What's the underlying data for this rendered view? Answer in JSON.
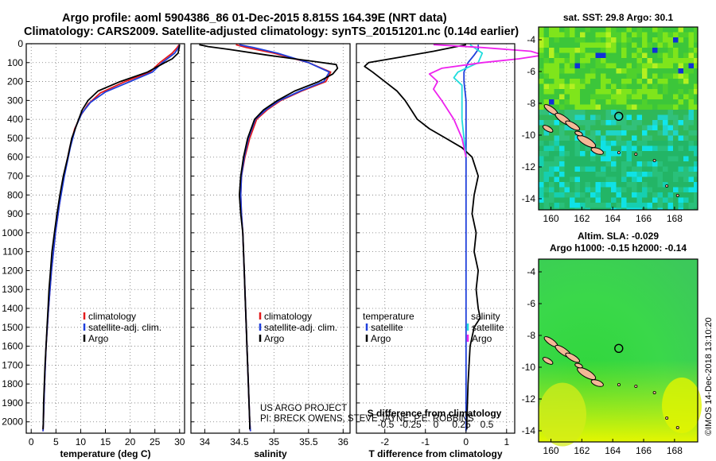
{
  "header": {
    "title_line1": "Argo profile: aoml 5904386_86 01-Dec-2015 8.815S 164.39E (NRT data)",
    "title_line2": "Climatology: CARS2009. Satellite-adjusted climatology: synTS_20151201.nc (0.14d earlier)"
  },
  "credit": {
    "line1": "US ARGO PROJECT",
    "line2": "PI: BRECK OWENS, STEVE JAYNE, P.E. ROBBINS"
  },
  "watermark": "©IMOS 14-Dec-2018 13:10:20",
  "colors": {
    "climatology": "#e31a1c",
    "satellite": "#1f3fdc",
    "argo": "#000000",
    "sat_salinity": "#22dddd",
    "argo_salinity": "#ee22ee",
    "land": "#f4b896"
  },
  "chart_data": [
    {
      "type": "line",
      "panel": "temperature",
      "xlabel": "temperature (deg C)",
      "ylabel": "",
      "xlim": [
        -1,
        31
      ],
      "ylim": [
        2060,
        0
      ],
      "x_ticks": [
        0,
        5,
        10,
        15,
        20,
        25,
        30
      ],
      "y_ticks": [
        0,
        100,
        200,
        300,
        400,
        500,
        600,
        700,
        800,
        900,
        1000,
        1100,
        1200,
        1300,
        1400,
        1500,
        1600,
        1700,
        1800,
        1900,
        2000
      ],
      "grid": true,
      "legend": [
        "climatology",
        "satellite-adj. clim.",
        "Argo"
      ],
      "series": [
        {
          "name": "climatology",
          "color": "#e31a1c",
          "points": [
            [
              29.9,
              5
            ],
            [
              29.5,
              20
            ],
            [
              28.5,
              50
            ],
            [
              26,
              100
            ],
            [
              24,
              150
            ],
            [
              19,
              200
            ],
            [
              14,
              260
            ],
            [
              11.5,
              320
            ],
            [
              10,
              380
            ],
            [
              8.8,
              450
            ],
            [
              7.8,
              550
            ],
            [
              6.6,
              700
            ],
            [
              5.7,
              850
            ],
            [
              4.9,
              1000
            ],
            [
              4.1,
              1200
            ],
            [
              3.5,
              1400
            ],
            [
              3.0,
              1600
            ],
            [
              2.7,
              1800
            ],
            [
              2.45,
              2000
            ],
            [
              2.4,
              2050
            ]
          ]
        },
        {
          "name": "satellite-adj. clim.",
          "color": "#1f3fdc",
          "points": [
            [
              30.0,
              5
            ],
            [
              29.8,
              20
            ],
            [
              29,
              50
            ],
            [
              26.5,
              100
            ],
            [
              24.5,
              150
            ],
            [
              20,
              200
            ],
            [
              15,
              255
            ],
            [
              12,
              310
            ],
            [
              10.2,
              370
            ],
            [
              9,
              440
            ],
            [
              7.9,
              550
            ],
            [
              6.7,
              700
            ],
            [
              5.7,
              850
            ],
            [
              4.9,
              1000
            ],
            [
              4.1,
              1200
            ],
            [
              3.5,
              1400
            ],
            [
              3.0,
              1600
            ],
            [
              2.7,
              1800
            ],
            [
              2.45,
              2000
            ],
            [
              2.4,
              2050
            ]
          ]
        },
        {
          "name": "Argo",
          "color": "#000000",
          "points": [
            [
              30.0,
              5
            ],
            [
              29.9,
              20
            ],
            [
              29.7,
              50
            ],
            [
              28.5,
              80
            ],
            [
              27,
              100
            ],
            [
              23.5,
              150
            ],
            [
              18,
              200
            ],
            [
              13.5,
              250
            ],
            [
              11.5,
              300
            ],
            [
              10.3,
              350
            ],
            [
              9.6,
              400
            ],
            [
              8.9,
              450
            ],
            [
              8.2,
              500
            ],
            [
              7.4,
              600
            ],
            [
              6.5,
              700
            ],
            [
              5.8,
              800
            ],
            [
              5.2,
              900
            ],
            [
              4.7,
              1000
            ],
            [
              4.2,
              1100
            ],
            [
              3.9,
              1200
            ],
            [
              3.6,
              1300
            ],
            [
              3.4,
              1400
            ],
            [
              3.2,
              1500
            ],
            [
              3.0,
              1600
            ],
            [
              2.8,
              1700
            ],
            [
              2.65,
              1800
            ],
            [
              2.5,
              1900
            ],
            [
              2.45,
              2000
            ],
            [
              2.4,
              2040
            ]
          ]
        }
      ]
    },
    {
      "type": "line",
      "panel": "salinity",
      "xlabel": "salinity",
      "xlim": [
        33.8,
        36.1
      ],
      "ylim": [
        2060,
        0
      ],
      "x_ticks": [
        34,
        34.5,
        35,
        35.5,
        36
      ],
      "grid": true,
      "legend": [
        "climatology",
        "satellite-adj. clim.",
        "Argo"
      ],
      "series": [
        {
          "name": "climatology",
          "color": "#e31a1c",
          "points": [
            [
              34.45,
              5
            ],
            [
              34.6,
              20
            ],
            [
              35.0,
              50
            ],
            [
              35.5,
              100
            ],
            [
              35.82,
              150
            ],
            [
              35.75,
              200
            ],
            [
              35.4,
              250
            ],
            [
              35.1,
              300
            ],
            [
              34.9,
              350
            ],
            [
              34.75,
              400
            ],
            [
              34.65,
              500
            ],
            [
              34.58,
              600
            ],
            [
              34.53,
              700
            ],
            [
              34.52,
              800
            ],
            [
              34.53,
              900
            ],
            [
              34.55,
              1000
            ],
            [
              34.57,
              1200
            ],
            [
              34.59,
              1400
            ],
            [
              34.61,
              1600
            ],
            [
              34.63,
              1800
            ],
            [
              34.65,
              2000
            ],
            [
              34.66,
              2050
            ]
          ]
        },
        {
          "name": "satellite-adj. clim.",
          "color": "#1f3fdc",
          "points": [
            [
              34.5,
              5
            ],
            [
              34.7,
              20
            ],
            [
              35.05,
              50
            ],
            [
              35.5,
              100
            ],
            [
              35.8,
              150
            ],
            [
              35.72,
              200
            ],
            [
              35.38,
              250
            ],
            [
              35.08,
              300
            ],
            [
              34.88,
              350
            ],
            [
              34.73,
              400
            ],
            [
              34.63,
              500
            ],
            [
              34.57,
              600
            ],
            [
              34.53,
              700
            ],
            [
              34.52,
              800
            ],
            [
              34.53,
              900
            ],
            [
              34.55,
              1000
            ],
            [
              34.57,
              1200
            ],
            [
              34.59,
              1400
            ],
            [
              34.61,
              1600
            ],
            [
              34.63,
              1800
            ],
            [
              34.65,
              2000
            ],
            [
              34.66,
              2050
            ]
          ]
        },
        {
          "name": "Argo",
          "color": "#000000",
          "points": [
            [
              33.92,
              5
            ],
            [
              34.05,
              15
            ],
            [
              34.35,
              30
            ],
            [
              34.9,
              60
            ],
            [
              35.5,
              90
            ],
            [
              35.9,
              110
            ],
            [
              35.92,
              130
            ],
            [
              35.85,
              160
            ],
            [
              35.65,
              200
            ],
            [
              35.3,
              250
            ],
            [
              35.05,
              300
            ],
            [
              34.85,
              350
            ],
            [
              34.72,
              400
            ],
            [
              34.62,
              500
            ],
            [
              34.56,
              600
            ],
            [
              34.52,
              700
            ],
            [
              34.5,
              800
            ],
            [
              34.52,
              900
            ],
            [
              34.55,
              1000
            ],
            [
              34.56,
              1100
            ],
            [
              34.57,
              1200
            ],
            [
              34.58,
              1300
            ],
            [
              34.59,
              1400
            ],
            [
              34.6,
              1500
            ],
            [
              34.61,
              1600
            ],
            [
              34.62,
              1700
            ],
            [
              34.63,
              1800
            ],
            [
              34.64,
              1900
            ],
            [
              34.65,
              2000
            ],
            [
              34.65,
              2040
            ]
          ]
        }
      ]
    },
    {
      "type": "line",
      "panel": "difference",
      "xlabel": "T difference from climatology",
      "top_label": "S difference from climatology",
      "xlim": [
        -2.7,
        1.2
      ],
      "ylim": [
        2060,
        0
      ],
      "x_ticks": [
        -2,
        -1,
        0,
        1
      ],
      "top_ticks": [
        "-0.5",
        "-0.25",
        "0",
        "0.25",
        "0.5"
      ],
      "grid": true,
      "legend_left_title": "temperature",
      "legend_right_title": "salinity",
      "legend": [
        "satellite",
        "Argo",
        "satellite",
        "Argo"
      ],
      "series": [
        {
          "name": "satellite",
          "color": "#1f3fdc",
          "points": [
            [
              0.3,
              5
            ],
            [
              0.3,
              30
            ],
            [
              0.2,
              60
            ],
            [
              0.05,
              100
            ],
            [
              -0.05,
              150
            ],
            [
              -0.05,
              200
            ],
            [
              0,
              300
            ],
            [
              0,
              400
            ],
            [
              0,
              500
            ],
            [
              0,
              600
            ],
            [
              0,
              800
            ],
            [
              0,
              1000
            ],
            [
              0,
              1500
            ],
            [
              0,
              2000
            ],
            [
              0,
              2050
            ]
          ]
        },
        {
          "name": "Argo",
          "color": "#000000",
          "points": [
            [
              0,
              5
            ],
            [
              -0.8,
              40
            ],
            [
              -1.6,
              70
            ],
            [
              -2.4,
              100
            ],
            [
              -2.5,
              120
            ],
            [
              -2.3,
              150
            ],
            [
              -2.0,
              200
            ],
            [
              -1.7,
              250
            ],
            [
              -1.5,
              300
            ],
            [
              -1.35,
              350
            ],
            [
              -1.2,
              400
            ],
            [
              -0.9,
              450
            ],
            [
              -0.5,
              500
            ],
            [
              -0.1,
              550
            ],
            [
              0.15,
              600
            ],
            [
              0.3,
              700
            ],
            [
              0.2,
              800
            ],
            [
              0.15,
              900
            ],
            [
              0.25,
              1000
            ],
            [
              0.2,
              1100
            ],
            [
              0.3,
              1200
            ],
            [
              0.25,
              1300
            ],
            [
              0.3,
              1400
            ],
            [
              0.35,
              1450
            ],
            [
              0.2,
              1500
            ],
            [
              0.1,
              1600
            ],
            [
              0.05,
              1800
            ],
            [
              0.02,
              2000
            ],
            [
              0.02,
              2040
            ]
          ]
        },
        {
          "name": "satellite",
          "color": "#22dddd",
          "points": [
            [
              0.1,
              5
            ],
            [
              0.4,
              50
            ],
            [
              0.3,
              100
            ],
            [
              -0.2,
              150
            ],
            [
              -0.3,
              180
            ],
            [
              -0.1,
              220
            ],
            [
              -0.1,
              300
            ],
            [
              -0.1,
              400
            ],
            [
              -0.05,
              500
            ],
            [
              0,
              600
            ]
          ]
        },
        {
          "name": "Argo",
          "color": "#ee22ee",
          "points": [
            [
              -0.8,
              5
            ],
            [
              0.4,
              20
            ],
            [
              1.6,
              40
            ],
            [
              1.9,
              60
            ],
            [
              1.3,
              80
            ],
            [
              0.4,
              100
            ],
            [
              -0.6,
              130
            ],
            [
              -0.9,
              160
            ],
            [
              -0.7,
              200
            ],
            [
              -0.8,
              240
            ],
            [
              -0.6,
              300
            ],
            [
              -0.3,
              400
            ],
            [
              -0.1,
              500
            ],
            [
              0,
              600
            ]
          ]
        }
      ]
    },
    {
      "type": "heatmap",
      "panel": "sst-map",
      "title": "sat. SST: 29.8 Argo: 30.1",
      "xlim": [
        159.2,
        169.5
      ],
      "ylim": [
        -14.7,
        -3.2
      ],
      "x_ticks": [
        "160",
        "162",
        "164",
        "166",
        "168"
      ],
      "y_ticks": [
        "-4",
        "-6",
        "-8",
        "-10",
        "-12",
        "-14"
      ],
      "argo_position": [
        164.39,
        -8.815
      ]
    },
    {
      "type": "heatmap",
      "panel": "sla-map",
      "title": "Altim. SLA: -0.029",
      "subtitle": "Argo h1000: -0.15 h2000: -0.14",
      "xlim": [
        159.2,
        169.5
      ],
      "ylim": [
        -14.7,
        -3.2
      ],
      "x_ticks": [
        "160",
        "162",
        "164",
        "166",
        "168"
      ],
      "y_ticks": [
        "-4",
        "-6",
        "-8",
        "-10",
        "-12",
        "-14"
      ],
      "argo_position": [
        164.39,
        -8.815
      ]
    }
  ]
}
